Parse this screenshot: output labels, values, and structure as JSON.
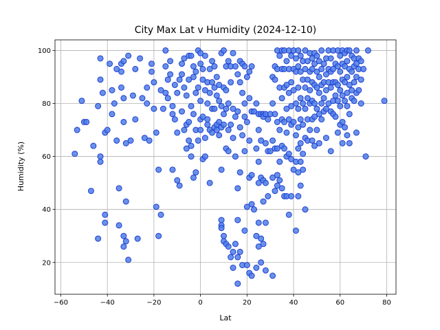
{
  "chart_data": {
    "type": "scatter",
    "title": "City Max Lat v Humidity (2024-12-10)",
    "xlabel": "Lat",
    "ylabel": "Humidity (%)",
    "xlim": [
      -62.5,
      84
    ],
    "ylim": [
      8,
      104
    ],
    "xticks": [
      -60,
      -40,
      -20,
      0,
      20,
      40,
      60,
      80
    ],
    "yticks": [
      20,
      40,
      60,
      80,
      100
    ],
    "grid": true,
    "colors": {
      "fill": "#4f7ee6",
      "edge": "#1f3fd1"
    },
    "points": [
      [
        -54,
        61
      ],
      [
        -53,
        70
      ],
      [
        -51,
        81
      ],
      [
        -50,
        73
      ],
      [
        -49,
        73
      ],
      [
        -47,
        47
      ],
      [
        -46,
        64
      ],
      [
        -44,
        79
      ],
      [
        -44,
        29
      ],
      [
        -43,
        89
      ],
      [
        -43,
        97
      ],
      [
        -43,
        60
      ],
      [
        -43,
        58
      ],
      [
        -42,
        84
      ],
      [
        -41,
        38
      ],
      [
        -41,
        35
      ],
      [
        -41,
        69
      ],
      [
        -40,
        70
      ],
      [
        -39,
        95
      ],
      [
        -38,
        85
      ],
      [
        -38,
        76
      ],
      [
        -37,
        80
      ],
      [
        -36,
        66
      ],
      [
        -36,
        93
      ],
      [
        -35,
        48
      ],
      [
        -35,
        34
      ],
      [
        -34,
        92
      ],
      [
        -34,
        86
      ],
      [
        -34,
        95
      ],
      [
        -33,
        73
      ],
      [
        -33,
        82
      ],
      [
        -33,
        96
      ],
      [
        -33,
        30
      ],
      [
        -33,
        26
      ],
      [
        -32,
        65
      ],
      [
        -32,
        43
      ],
      [
        -32,
        28
      ],
      [
        -31,
        98
      ],
      [
        -31,
        21
      ],
      [
        -30,
        66
      ],
      [
        -29,
        83
      ],
      [
        -28,
        93
      ],
      [
        -28,
        74
      ],
      [
        -27,
        29
      ],
      [
        -26,
        97
      ],
      [
        -25,
        82
      ],
      [
        -24,
        67
      ],
      [
        -23,
        86
      ],
      [
        -23,
        80
      ],
      [
        -22,
        66
      ],
      [
        -21,
        92
      ],
      [
        -21,
        95
      ],
      [
        -20,
        88
      ],
      [
        -20,
        78
      ],
      [
        -19,
        69
      ],
      [
        -19,
        41
      ],
      [
        -18,
        55
      ],
      [
        -18,
        30
      ],
      [
        -17,
        85
      ],
      [
        -17,
        38
      ],
      [
        -16,
        78
      ],
      [
        -15,
        94
      ],
      [
        -15,
        100
      ],
      [
        -15,
        84
      ],
      [
        -14,
        89
      ],
      [
        -14,
        82
      ],
      [
        -13,
        96
      ],
      [
        -13,
        91
      ],
      [
        -12,
        79
      ],
      [
        -12,
        55
      ],
      [
        -12,
        76
      ],
      [
        -11,
        87
      ],
      [
        -11,
        74
      ],
      [
        -10,
        84
      ],
      [
        -10,
        69
      ],
      [
        -10,
        51
      ],
      [
        -9,
        89
      ],
      [
        -9,
        49
      ],
      [
        -8,
        95
      ],
      [
        -8,
        91
      ],
      [
        -8,
        77
      ],
      [
        -7,
        97
      ],
      [
        -7,
        86
      ],
      [
        -7,
        70
      ],
      [
        -6,
        83
      ],
      [
        -6,
        72
      ],
      [
        -6,
        63
      ],
      [
        -5,
        98
      ],
      [
        -5,
        89
      ],
      [
        -5,
        73
      ],
      [
        -5,
        66
      ],
      [
        -4,
        98
      ],
      [
        -4,
        79
      ],
      [
        -4,
        64
      ],
      [
        -4,
        60
      ],
      [
        -3,
        94
      ],
      [
        -3,
        90
      ],
      [
        -3,
        76
      ],
      [
        -3,
        52
      ],
      [
        -2,
        92
      ],
      [
        -2,
        84
      ],
      [
        -2,
        54
      ],
      [
        -2,
        70
      ],
      [
        -1,
        100
      ],
      [
        -1,
        86
      ],
      [
        -1,
        66
      ],
      [
        0,
        99
      ],
      [
        0,
        95
      ],
      [
        0,
        81
      ],
      [
        0,
        74
      ],
      [
        0,
        70
      ],
      [
        1,
        93
      ],
      [
        1,
        89
      ],
      [
        1,
        75
      ],
      [
        1,
        59
      ],
      [
        2,
        98
      ],
      [
        2,
        85
      ],
      [
        2,
        67
      ],
      [
        2,
        60
      ],
      [
        3,
        88
      ],
      [
        3,
        80
      ],
      [
        3,
        74
      ],
      [
        3,
        72
      ],
      [
        4,
        93
      ],
      [
        4,
        84
      ],
      [
        4,
        70
      ],
      [
        4,
        50
      ],
      [
        5,
        96
      ],
      [
        5,
        88
      ],
      [
        5,
        78
      ],
      [
        5,
        69
      ],
      [
        6,
        94
      ],
      [
        6,
        86
      ],
      [
        6,
        78
      ],
      [
        6,
        71
      ],
      [
        7,
        90
      ],
      [
        7,
        83
      ],
      [
        7,
        72
      ],
      [
        7,
        70
      ],
      [
        8,
        87
      ],
      [
        8,
        81
      ],
      [
        8,
        73
      ],
      [
        8,
        68
      ],
      [
        9,
        99
      ],
      [
        9,
        79
      ],
      [
        9,
        71
      ],
      [
        9,
        55
      ],
      [
        9,
        36
      ],
      [
        9,
        34
      ],
      [
        9,
        33
      ],
      [
        10,
        100
      ],
      [
        10,
        86
      ],
      [
        10,
        76
      ],
      [
        10,
        72
      ],
      [
        10,
        30
      ],
      [
        10,
        28
      ],
      [
        11,
        94
      ],
      [
        11,
        85
      ],
      [
        11,
        78
      ],
      [
        11,
        63
      ],
      [
        11,
        27
      ],
      [
        12,
        96
      ],
      [
        12,
        80
      ],
      [
        12,
        70
      ],
      [
        12,
        62
      ],
      [
        12,
        26
      ],
      [
        13,
        94
      ],
      [
        13,
        88
      ],
      [
        13,
        72
      ],
      [
        13,
        22
      ],
      [
        14,
        99
      ],
      [
        14,
        78
      ],
      [
        14,
        67
      ],
      [
        14,
        18
      ],
      [
        14,
        24
      ],
      [
        15,
        94
      ],
      [
        15,
        75
      ],
      [
        15,
        60
      ],
      [
        15,
        27
      ],
      [
        16,
        91
      ],
      [
        16,
        77
      ],
      [
        16,
        48
      ],
      [
        16,
        36
      ],
      [
        16,
        22
      ],
      [
        16,
        12
      ],
      [
        17,
        96
      ],
      [
        17,
        88
      ],
      [
        17,
        71
      ],
      [
        17,
        54
      ],
      [
        17,
        24
      ],
      [
        18,
        95
      ],
      [
        18,
        84
      ],
      [
        18,
        68
      ],
      [
        18,
        19
      ],
      [
        19,
        94
      ],
      [
        19,
        80
      ],
      [
        19,
        75
      ],
      [
        19,
        62
      ],
      [
        19,
        32
      ],
      [
        20,
        90
      ],
      [
        20,
        73
      ],
      [
        20,
        41
      ],
      [
        20,
        19
      ],
      [
        21,
        92
      ],
      [
        21,
        82
      ],
      [
        21,
        66
      ],
      [
        21,
        52
      ],
      [
        21,
        16
      ],
      [
        22,
        94
      ],
      [
        22,
        77
      ],
      [
        22,
        53
      ],
      [
        22,
        42
      ],
      [
        22,
        15
      ],
      [
        23,
        77
      ],
      [
        23,
        40
      ],
      [
        24,
        80
      ],
      [
        24,
        63
      ],
      [
        24,
        30
      ],
      [
        24,
        18
      ],
      [
        25,
        76
      ],
      [
        25,
        70
      ],
      [
        25,
        58
      ],
      [
        25,
        50
      ],
      [
        25,
        35
      ],
      [
        25,
        26
      ],
      [
        26,
        76
      ],
      [
        26,
        66
      ],
      [
        26,
        52
      ],
      [
        26,
        29
      ],
      [
        26,
        20
      ],
      [
        27,
        76
      ],
      [
        27,
        75
      ],
      [
        27,
        51
      ],
      [
        27,
        43
      ],
      [
        27,
        27
      ],
      [
        28,
        76
      ],
      [
        28,
        65
      ],
      [
        28,
        50
      ],
      [
        28,
        35
      ],
      [
        28,
        17
      ],
      [
        29,
        74
      ],
      [
        29,
        62
      ],
      [
        29,
        45
      ],
      [
        30,
        76
      ],
      [
        30,
        62
      ],
      [
        31,
        90
      ],
      [
        31,
        80
      ],
      [
        31,
        66
      ],
      [
        31,
        52
      ],
      [
        31,
        15
      ],
      [
        32,
        94
      ],
      [
        32,
        89
      ],
      [
        32,
        76
      ],
      [
        32,
        63
      ],
      [
        32,
        47
      ],
      [
        33,
        100
      ],
      [
        33,
        93
      ],
      [
        33,
        73
      ],
      [
        33,
        63
      ],
      [
        33,
        53
      ],
      [
        33,
        49
      ],
      [
        34,
        98
      ],
      [
        34,
        86
      ],
      [
        34,
        70
      ],
      [
        34,
        58
      ],
      [
        34,
        51
      ],
      [
        35,
        100
      ],
      [
        35,
        93
      ],
      [
        35,
        82
      ],
      [
        35,
        74
      ],
      [
        35,
        64
      ],
      [
        35,
        48
      ],
      [
        36,
        100
      ],
      [
        36,
        93
      ],
      [
        36,
        86
      ],
      [
        36,
        73
      ],
      [
        36,
        63
      ],
      [
        36,
        45
      ],
      [
        37,
        96
      ],
      [
        37,
        87
      ],
      [
        37,
        78
      ],
      [
        37,
        69
      ],
      [
        37,
        60
      ],
      [
        37,
        45
      ],
      [
        38,
        100
      ],
      [
        38,
        93
      ],
      [
        38,
        84
      ],
      [
        38,
        74
      ],
      [
        38,
        61
      ],
      [
        38,
        38
      ],
      [
        39,
        98
      ],
      [
        39,
        88
      ],
      [
        39,
        79
      ],
      [
        39,
        72
      ],
      [
        39,
        59
      ],
      [
        39,
        45
      ],
      [
        40,
        100
      ],
      [
        40,
        93
      ],
      [
        40,
        85
      ],
      [
        40,
        73
      ],
      [
        40,
        55
      ],
      [
        41,
        97
      ],
      [
        41,
        92
      ],
      [
        41,
        80
      ],
      [
        41,
        68
      ],
      [
        41,
        58
      ],
      [
        41,
        32
      ],
      [
        42,
        100
      ],
      [
        42,
        94
      ],
      [
        42,
        86
      ],
      [
        42,
        78
      ],
      [
        42,
        71
      ],
      [
        42,
        63
      ],
      [
        42,
        54
      ],
      [
        42,
        45
      ],
      [
        43,
        98
      ],
      [
        43,
        92
      ],
      [
        43,
        82
      ],
      [
        43,
        74
      ],
      [
        43,
        65
      ],
      [
        43,
        58
      ],
      [
        43,
        49
      ],
      [
        44,
        96
      ],
      [
        44,
        89
      ],
      [
        44,
        80
      ],
      [
        44,
        72
      ],
      [
        44,
        61
      ],
      [
        44,
        55
      ],
      [
        45,
        100
      ],
      [
        45,
        93
      ],
      [
        45,
        86
      ],
      [
        45,
        78
      ],
      [
        45,
        67
      ],
      [
        45,
        40
      ],
      [
        46,
        96
      ],
      [
        46,
        89
      ],
      [
        46,
        82
      ],
      [
        46,
        74
      ],
      [
        46,
        66
      ],
      [
        47,
        99
      ],
      [
        47,
        92
      ],
      [
        47,
        85
      ],
      [
        47,
        80
      ],
      [
        47,
        70
      ],
      [
        48,
        97
      ],
      [
        48,
        93
      ],
      [
        48,
        88
      ],
      [
        48,
        81
      ],
      [
        48,
        74
      ],
      [
        48,
        66
      ],
      [
        49,
        99
      ],
      [
        49,
        95
      ],
      [
        49,
        87
      ],
      [
        49,
        80
      ],
      [
        49,
        75
      ],
      [
        49,
        64
      ],
      [
        50,
        98
      ],
      [
        50,
        92
      ],
      [
        50,
        86
      ],
      [
        50,
        78
      ],
      [
        50,
        70
      ],
      [
        51,
        96
      ],
      [
        51,
        90
      ],
      [
        51,
        84
      ],
      [
        51,
        76
      ],
      [
        51,
        65
      ],
      [
        52,
        100
      ],
      [
        52,
        93
      ],
      [
        52,
        87
      ],
      [
        52,
        80
      ],
      [
        52,
        74
      ],
      [
        53,
        95
      ],
      [
        53,
        88
      ],
      [
        53,
        82
      ],
      [
        53,
        77
      ],
      [
        54,
        97
      ],
      [
        54,
        91
      ],
      [
        54,
        85
      ],
      [
        54,
        78
      ],
      [
        54,
        67
      ],
      [
        55,
        100
      ],
      [
        55,
        93
      ],
      [
        55,
        88
      ],
      [
        55,
        80
      ],
      [
        56,
        97
      ],
      [
        56,
        92
      ],
      [
        56,
        86
      ],
      [
        56,
        77
      ],
      [
        56,
        62
      ],
      [
        57,
        100
      ],
      [
        57,
        93
      ],
      [
        57,
        88
      ],
      [
        57,
        81
      ],
      [
        57,
        76
      ],
      [
        58,
        95
      ],
      [
        58,
        88
      ],
      [
        58,
        83
      ],
      [
        58,
        75
      ],
      [
        59,
        100
      ],
      [
        59,
        94
      ],
      [
        59,
        87
      ],
      [
        59,
        81
      ],
      [
        59,
        69
      ],
      [
        60,
        98
      ],
      [
        60,
        92
      ],
      [
        60,
        85
      ],
      [
        60,
        79
      ],
      [
        60,
        72
      ],
      [
        61,
        100
      ],
      [
        61,
        95
      ],
      [
        61,
        89
      ],
      [
        61,
        83
      ],
      [
        61,
        73
      ],
      [
        61,
        65
      ],
      [
        62,
        99
      ],
      [
        62,
        94
      ],
      [
        62,
        88
      ],
      [
        62,
        81
      ],
      [
        62,
        71
      ],
      [
        63,
        100
      ],
      [
        63,
        96
      ],
      [
        63,
        90
      ],
      [
        63,
        84
      ],
      [
        63,
        79
      ],
      [
        63,
        68
      ],
      [
        64,
        100
      ],
      [
        64,
        93
      ],
      [
        64,
        87
      ],
      [
        64,
        76
      ],
      [
        64,
        65
      ],
      [
        65,
        98
      ],
      [
        65,
        92
      ],
      [
        65,
        85
      ],
      [
        65,
        82
      ],
      [
        66,
        97
      ],
      [
        66,
        94
      ],
      [
        66,
        88
      ],
      [
        66,
        81
      ],
      [
        67,
        100
      ],
      [
        67,
        95
      ],
      [
        67,
        90
      ],
      [
        67,
        84
      ],
      [
        67,
        69
      ],
      [
        68,
        97
      ],
      [
        68,
        93
      ],
      [
        68,
        85
      ],
      [
        69,
        96
      ],
      [
        69,
        89
      ],
      [
        69,
        80
      ],
      [
        70,
        93
      ],
      [
        71,
        60
      ],
      [
        72,
        100
      ],
      [
        79,
        81
      ]
    ]
  }
}
